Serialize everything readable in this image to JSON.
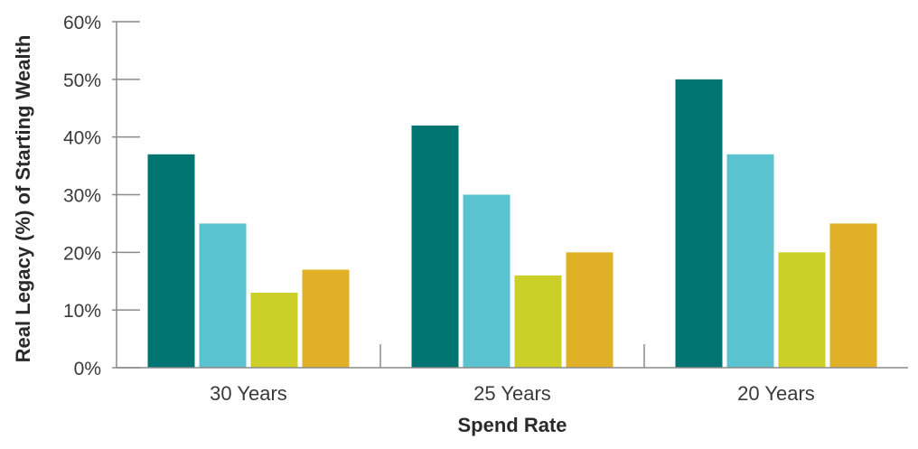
{
  "chart_data": {
    "type": "bar",
    "title": "",
    "xlabel": "Spend Rate",
    "ylabel": "Real Legacy (%) of Starting Wealth",
    "ylim": [
      0,
      60
    ],
    "yticks": [
      "0%",
      "10%",
      "20%",
      "30%",
      "40%",
      "50%",
      "60%"
    ],
    "categories": [
      "30 Years",
      "25 Years",
      "20 Years"
    ],
    "series": [
      {
        "color": "#007470",
        "values": [
          37,
          42,
          50
        ]
      },
      {
        "color": "#5BC2D0",
        "values": [
          25,
          30,
          37
        ]
      },
      {
        "color": "#CDCF29",
        "values": [
          13,
          16,
          20
        ]
      },
      {
        "color": "#E0B127",
        "values": [
          17,
          20,
          25
        ]
      }
    ],
    "grid": false,
    "legend": "none"
  }
}
